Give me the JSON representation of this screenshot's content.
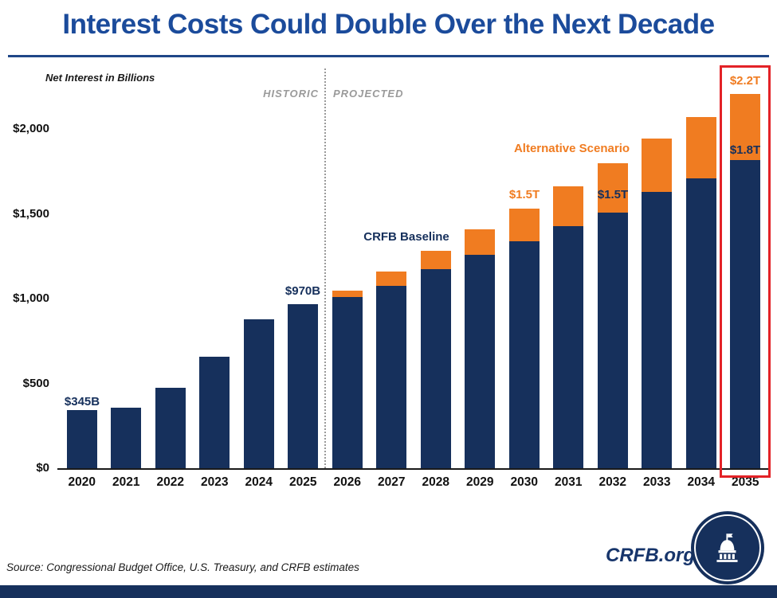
{
  "page": {
    "title": "Interest Costs Could Double Over the Next Decade",
    "source_note": "Source: Congressional Budget Office, U.S. Treasury, and CRFB estimates",
    "brand": "CRFB.org"
  },
  "colors": {
    "bar_navy": "#16305c",
    "bar_orange": "#f07c21",
    "title_blue": "#1b4b9b",
    "highlight_red": "#e32227",
    "zone_label_gray": "#9a9a9a"
  },
  "chart_data": {
    "type": "bar",
    "stacked": true,
    "title": "Interest Costs Could Double Over the Next Decade",
    "ylabel": "Net Interest in Billions",
    "xlabel": "",
    "ylim": [
      0,
      2350
    ],
    "grid": false,
    "legend_position": "none",
    "categories": [
      "2020",
      "2021",
      "2022",
      "2023",
      "2024",
      "2025",
      "2026",
      "2027",
      "2028",
      "2029",
      "2030",
      "2031",
      "2032",
      "2033",
      "2034",
      "2035"
    ],
    "series": [
      {
        "name": "CRFB Baseline",
        "color": "#16305c",
        "values": [
          345,
          355,
          475,
          660,
          880,
          970,
          1010,
          1075,
          1175,
          1260,
          1340,
          1430,
          1510,
          1630,
          1710,
          1820
        ]
      },
      {
        "name": "Alternative Scenario (increment above baseline)",
        "color": "#f07c21",
        "values": [
          0,
          0,
          0,
          0,
          0,
          0,
          40,
          85,
          110,
          150,
          190,
          235,
          290,
          315,
          365,
          390
        ]
      }
    ],
    "stack_totals": [
      345,
      355,
      475,
      660,
      880,
      970,
      1050,
      1160,
      1285,
      1410,
      1530,
      1665,
      1800,
      1945,
      2075,
      2210
    ],
    "yticks": [
      {
        "value": 0,
        "label": "$0"
      },
      {
        "value": 500,
        "label": "$500"
      },
      {
        "value": 1000,
        "label": "$1,000"
      },
      {
        "value": 1500,
        "label": "$1,500"
      },
      {
        "value": 2000,
        "label": "$2,000"
      }
    ],
    "divider": {
      "position_after_category": "2025",
      "left_label": "HISTORIC",
      "right_label": "PROJECTED"
    },
    "highlight": {
      "category": "2035",
      "color": "#e32227"
    },
    "annotations": [
      {
        "id": "label-345b",
        "text": "$345B",
        "color": "navy",
        "category": "2020"
      },
      {
        "id": "label-970b",
        "text": "$970B",
        "color": "navy",
        "category": "2025"
      },
      {
        "id": "series-label-baseline",
        "text": "CRFB Baseline",
        "color": "navy"
      },
      {
        "id": "series-label-alternative",
        "text": "Alternative Scenario",
        "color": "orange"
      },
      {
        "id": "label-1-5t-alternative",
        "text": "$1.5T",
        "color": "orange",
        "category": "2030"
      },
      {
        "id": "label-1-5t-baseline",
        "text": "$1.5T",
        "color": "navy",
        "category": "2032"
      },
      {
        "id": "label-1-8t-baseline",
        "text": "$1.8T",
        "color": "navy",
        "category": "2035"
      },
      {
        "id": "label-2-2t-alternative",
        "text": "$2.2T",
        "color": "orange",
        "category": "2035"
      }
    ]
  }
}
